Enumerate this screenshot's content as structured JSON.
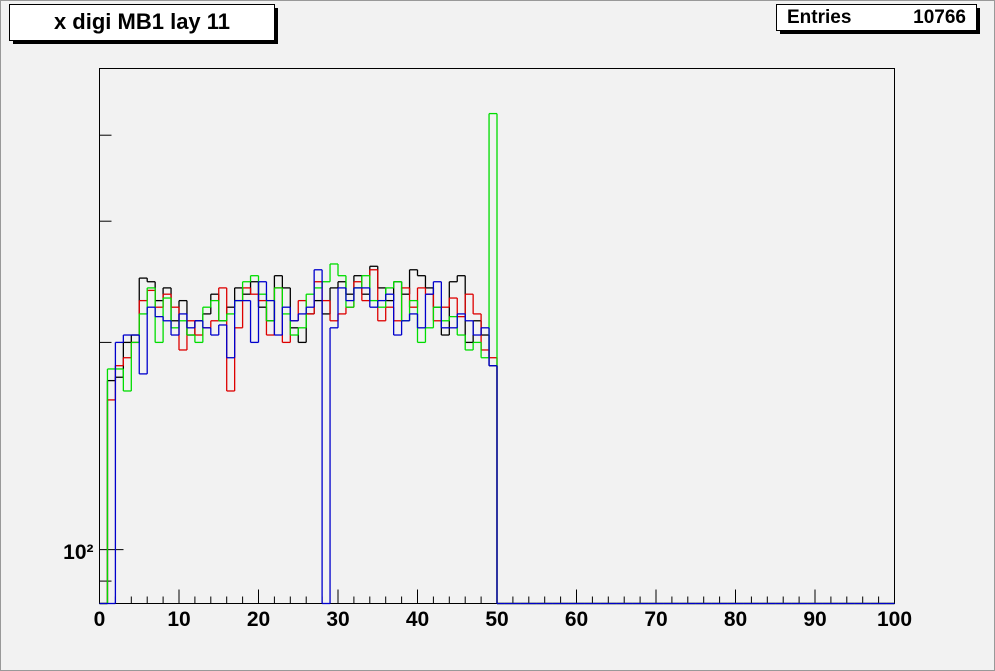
{
  "chart_data": {
    "type": "histogram",
    "title": "x digi MB1 lay 11",
    "stats": {
      "label": "Entries",
      "value": 10766
    },
    "bins": [
      0,
      1,
      2,
      3,
      4,
      5,
      6,
      7,
      8,
      9,
      10,
      11,
      12,
      13,
      14,
      15,
      16,
      17,
      18,
      19,
      20,
      21,
      22,
      23,
      24,
      25,
      26,
      27,
      28,
      29,
      30,
      31,
      32,
      33,
      34,
      35,
      36,
      37,
      38,
      39,
      40,
      41,
      42,
      43,
      44,
      45,
      46,
      47,
      48,
      49,
      50,
      51,
      52,
      53,
      54,
      55,
      56,
      57,
      58,
      59,
      60,
      61,
      62,
      63,
      64,
      65,
      66,
      67,
      68,
      69,
      70,
      71,
      72,
      73,
      74,
      75,
      76,
      77,
      78,
      79,
      80,
      81,
      82,
      83,
      84,
      85,
      86,
      87,
      88,
      89,
      90,
      91,
      92,
      93,
      94,
      95,
      96,
      97,
      98,
      99,
      100
    ],
    "series": [
      {
        "color": "#000000",
        "values": [
          0,
          176,
          178,
          200,
          205,
          248,
          245,
          230,
          240,
          215,
          230,
          205,
          215,
          220,
          235,
          215,
          225,
          240,
          235,
          245,
          225,
          215,
          250,
          240,
          210,
          200,
          220,
          230,
          220,
          240,
          245,
          235,
          250,
          235,
          258,
          240,
          230,
          245,
          235,
          255,
          250,
          240,
          225,
          205,
          245,
          250,
          200,
          215,
          205,
          185,
          0,
          0,
          0,
          0,
          0,
          0,
          0,
          0,
          0,
          0,
          0,
          0,
          0,
          0,
          0,
          0,
          0,
          0,
          0,
          0,
          0,
          0,
          0,
          0,
          0,
          0,
          0,
          0,
          0,
          0,
          0,
          0,
          0,
          0,
          0,
          0,
          0,
          0,
          0,
          0,
          0,
          0,
          0,
          0,
          0,
          0,
          0,
          0,
          0,
          0
        ]
      },
      {
        "color": "#dd0000",
        "values": [
          0,
          165,
          185,
          190,
          200,
          230,
          238,
          225,
          235,
          225,
          195,
          215,
          205,
          210,
          215,
          240,
          170,
          210,
          240,
          235,
          230,
          205,
          240,
          200,
          215,
          230,
          220,
          245,
          230,
          215,
          220,
          225,
          245,
          230,
          255,
          215,
          225,
          215,
          240,
          225,
          240,
          235,
          215,
          225,
          232,
          218,
          235,
          220,
          195,
          190,
          0,
          0,
          0,
          0,
          0,
          0,
          0,
          0,
          0,
          0,
          0,
          0,
          0,
          0,
          0,
          0,
          0,
          0,
          0,
          0,
          0,
          0,
          0,
          0,
          0,
          0,
          0,
          0,
          0,
          0,
          0,
          0,
          0,
          0,
          0,
          0,
          0,
          0,
          0,
          0,
          0,
          0,
          0,
          0,
          0,
          0,
          0,
          0,
          0,
          0
        ]
      },
      {
        "color": "#00dd00",
        "values": [
          0,
          183,
          183,
          170,
          200,
          220,
          240,
          200,
          232,
          210,
          215,
          205,
          200,
          225,
          230,
          215,
          220,
          230,
          245,
          250,
          235,
          215,
          240,
          220,
          205,
          210,
          235,
          240,
          245,
          260,
          250,
          225,
          240,
          250,
          230,
          225,
          240,
          245,
          215,
          230,
          200,
          210,
          225,
          215,
          218,
          205,
          195,
          200,
          190,
          430,
          0,
          0,
          0,
          0,
          0,
          0,
          0,
          0,
          0,
          0,
          0,
          0,
          0,
          0,
          0,
          0,
          0,
          0,
          0,
          0,
          0,
          0,
          0,
          0,
          0,
          0,
          0,
          0,
          0,
          0,
          0,
          0,
          0,
          0,
          0,
          0,
          0,
          0,
          0,
          0,
          0,
          0,
          0,
          0,
          0,
          0,
          0,
          0,
          0,
          0
        ]
      },
      {
        "color": "#0000cc",
        "values": [
          0,
          0,
          200,
          205,
          205,
          180,
          225,
          218,
          215,
          205,
          220,
          210,
          215,
          210,
          205,
          212,
          190,
          230,
          230,
          200,
          245,
          230,
          205,
          225,
          215,
          220,
          225,
          255,
          0,
          210,
          240,
          230,
          240,
          240,
          225,
          230,
          235,
          205,
          215,
          220,
          210,
          235,
          245,
          210,
          210,
          220,
          215,
          205,
          210,
          185,
          0,
          0,
          0,
          0,
          0,
          0,
          0,
          0,
          0,
          0,
          0,
          0,
          0,
          0,
          0,
          0,
          0,
          0,
          0,
          0,
          0,
          0,
          0,
          0,
          0,
          0,
          0,
          0,
          0,
          0,
          0,
          0,
          0,
          0,
          0,
          0,
          0,
          0,
          0,
          0,
          0,
          0,
          0,
          0,
          0,
          0,
          0,
          0,
          0,
          0
        ]
      }
    ],
    "xlim": [
      0,
      100
    ],
    "xticks": [
      0,
      10,
      20,
      30,
      40,
      50,
      60,
      70,
      80,
      90,
      100
    ],
    "xminor_ticks": [
      2,
      4,
      6,
      8,
      12,
      14,
      16,
      18,
      22,
      24,
      26,
      28,
      32,
      34,
      36,
      38,
      42,
      44,
      46,
      48,
      52,
      54,
      56,
      58,
      62,
      64,
      66,
      68,
      72,
      74,
      76,
      78,
      82,
      84,
      86,
      88,
      92,
      94,
      96,
      98
    ],
    "ylim": [
      83.5,
      500
    ],
    "ylog": true,
    "yticks": [
      {
        "value": 100,
        "label": "10²"
      }
    ],
    "yminor_ticks": [
      90,
      200,
      300,
      400
    ]
  }
}
